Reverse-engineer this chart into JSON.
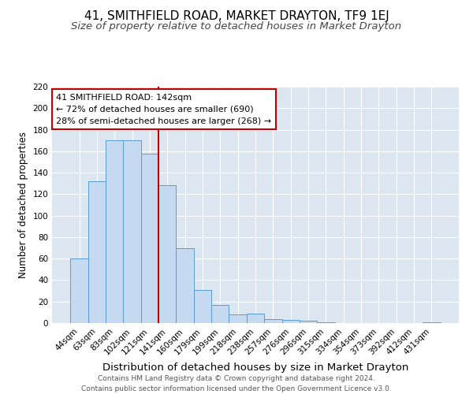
{
  "title": "41, SMITHFIELD ROAD, MARKET DRAYTON, TF9 1EJ",
  "subtitle": "Size of property relative to detached houses in Market Drayton",
  "xlabel": "Distribution of detached houses by size in Market Drayton",
  "ylabel": "Number of detached properties",
  "bar_labels": [
    "44sqm",
    "63sqm",
    "83sqm",
    "102sqm",
    "121sqm",
    "141sqm",
    "160sqm",
    "179sqm",
    "199sqm",
    "218sqm",
    "238sqm",
    "257sqm",
    "276sqm",
    "296sqm",
    "315sqm",
    "334sqm",
    "354sqm",
    "373sqm",
    "392sqm",
    "412sqm",
    "431sqm"
  ],
  "bar_values": [
    60,
    132,
    170,
    170,
    158,
    128,
    70,
    31,
    17,
    8,
    9,
    4,
    3,
    2,
    1,
    0,
    0,
    0,
    0,
    0,
    1
  ],
  "bar_color": "#c5d9f0",
  "bar_edge_color": "#5b9bd5",
  "vline_bar_index": 5,
  "vline_color": "#c00000",
  "annotation_title": "41 SMITHFIELD ROAD: 142sqm",
  "annotation_line1": "← 72% of detached houses are smaller (690)",
  "annotation_line2": "28% of semi-detached houses are larger (268) →",
  "annotation_box_facecolor": "#ffffff",
  "annotation_box_edgecolor": "#c00000",
  "ylim": [
    0,
    220
  ],
  "yticks": [
    0,
    20,
    40,
    60,
    80,
    100,
    120,
    140,
    160,
    180,
    200,
    220
  ],
  "bg_color": "#dce6f1",
  "footer_line1": "Contains HM Land Registry data © Crown copyright and database right 2024.",
  "footer_line2": "Contains public sector information licensed under the Open Government Licence v3.0.",
  "title_fontsize": 11,
  "subtitle_fontsize": 9.5,
  "xlabel_fontsize": 9.5,
  "ylabel_fontsize": 8.5,
  "tick_fontsize": 7.5,
  "annot_fontsize": 8,
  "footer_fontsize": 6.5
}
